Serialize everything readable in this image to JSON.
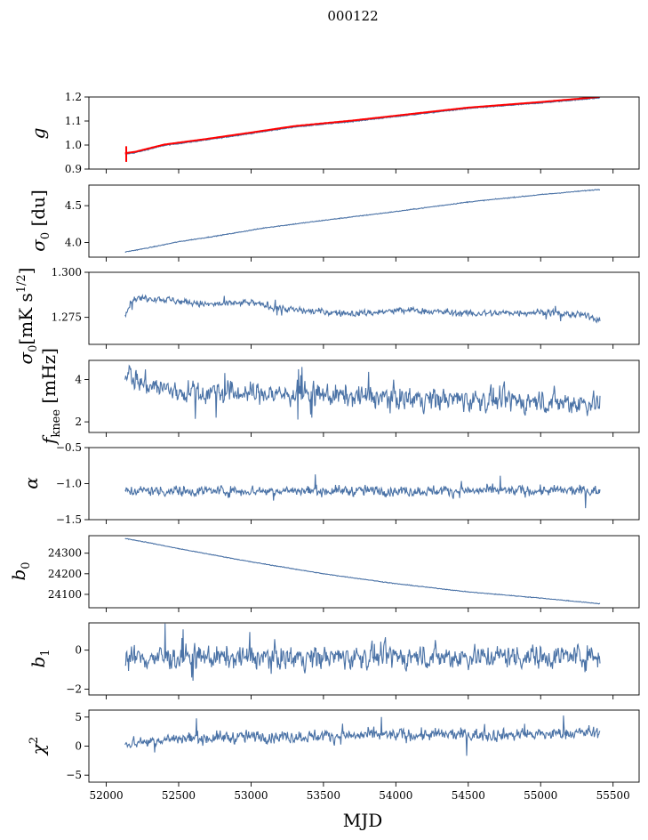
{
  "suptitle": "000122",
  "xlabel": "MJD",
  "colors": {
    "series": "#4a72a6",
    "gain_overlay": "#ff0000",
    "axes": "#000000"
  },
  "chart_data": {
    "type": "line",
    "title": "000122",
    "xlabel": "MJD",
    "xlim": [
      51880,
      55680
    ],
    "x_ticks": [
      52000,
      52500,
      53000,
      53500,
      54000,
      54500,
      55000,
      55500
    ],
    "x_tick_labels": [
      "52000",
      "52500",
      "53000",
      "53500",
      "54000",
      "54500",
      "55000",
      "55500"
    ],
    "x_range_data": [
      52130,
      55410
    ],
    "panels": [
      {
        "id": "g",
        "ylabel_text": "g",
        "ylim": [
          0.9,
          1.2
        ],
        "yticks": [
          0.9,
          1.0,
          1.1,
          1.2
        ],
        "ytick_labels": [
          "0.9",
          "1.0",
          "1.1",
          "1.2"
        ],
        "overlay": "red",
        "series": {
          "kind": "trend",
          "points": [
            [
              52130,
              0.962
            ],
            [
              52200,
              0.968
            ],
            [
              52400,
              0.998
            ],
            [
              52700,
              1.022
            ],
            [
              53000,
              1.048
            ],
            [
              53300,
              1.075
            ],
            [
              53700,
              1.098
            ],
            [
              54100,
              1.125
            ],
            [
              54500,
              1.152
            ],
            [
              55000,
              1.175
            ],
            [
              55400,
              1.196
            ]
          ],
          "noise": 0.0015
        }
      },
      {
        "id": "sigma0_du",
        "ylabel_text": "σ0 [du]",
        "ylim": [
          3.8,
          4.78
        ],
        "yticks": [
          4.0,
          4.5
        ],
        "ytick_labels": [
          "4.0",
          "4.5"
        ],
        "series": {
          "kind": "trend",
          "points": [
            [
              52130,
              3.87
            ],
            [
              52300,
              3.93
            ],
            [
              52500,
              4.01
            ],
            [
              52800,
              4.1
            ],
            [
              53100,
              4.2
            ],
            [
              53500,
              4.3
            ],
            [
              54000,
              4.42
            ],
            [
              54500,
              4.55
            ],
            [
              55000,
              4.65
            ],
            [
              55400,
              4.72
            ]
          ],
          "noise": 0.004
        }
      },
      {
        "id": "sigma0_mk",
        "ylabel_text": "σ0[mK s^1/2]",
        "ylim": [
          1.26,
          1.3
        ],
        "yticks": [
          1.275,
          1.3
        ],
        "ytick_labels": [
          "1.275",
          "1.300"
        ],
        "series": {
          "kind": "noisy",
          "points": [
            [
              52130,
              1.277
            ],
            [
              52180,
              1.285
            ],
            [
              52300,
              1.286
            ],
            [
              52700,
              1.282
            ],
            [
              53000,
              1.283
            ],
            [
              53300,
              1.279
            ],
            [
              53700,
              1.277
            ],
            [
              54100,
              1.279
            ],
            [
              54500,
              1.277
            ],
            [
              55000,
              1.278
            ],
            [
              55300,
              1.276
            ],
            [
              55400,
              1.274
            ]
          ],
          "noise": 0.0016
        }
      },
      {
        "id": "fknee",
        "ylabel_text": "fknee [mHz]",
        "ylim": [
          1.5,
          4.9
        ],
        "yticks": [
          2,
          4
        ],
        "ytick_labels": [
          "2",
          "4"
        ],
        "series": {
          "kind": "noisy",
          "points": [
            [
              52130,
              4.4
            ],
            [
              52250,
              3.8
            ],
            [
              52500,
              3.4
            ],
            [
              53000,
              3.35
            ],
            [
              53500,
              3.25
            ],
            [
              54000,
              3.15
            ],
            [
              54500,
              3.05
            ],
            [
              55000,
              2.95
            ],
            [
              55400,
              2.9
            ]
          ],
          "noise": 0.45
        }
      },
      {
        "id": "alpha",
        "ylabel_text": "α",
        "ylim": [
          -1.5,
          -0.5
        ],
        "yticks": [
          -1.5,
          -1.0,
          -0.5
        ],
        "ytick_labels": [
          "−1.5",
          "−1.0",
          "−0.5"
        ],
        "series": {
          "kind": "noisy",
          "points": [
            [
              52130,
              -1.1
            ],
            [
              55410,
              -1.1
            ]
          ],
          "noise": 0.06
        }
      },
      {
        "id": "b0",
        "ylabel_text": "b0",
        "ylim": [
          24035,
          24385
        ],
        "yticks": [
          24100,
          24200,
          24300
        ],
        "ytick_labels": [
          "24100",
          "24200",
          "24300"
        ],
        "series": {
          "kind": "trend",
          "points": [
            [
              52130,
              24372
            ],
            [
              52300,
              24350
            ],
            [
              52500,
              24322
            ],
            [
              53000,
              24258
            ],
            [
              53500,
              24200
            ],
            [
              54000,
              24152
            ],
            [
              54500,
              24112
            ],
            [
              55000,
              24082
            ],
            [
              55400,
              24055
            ]
          ],
          "noise": 1.2
        }
      },
      {
        "id": "b1",
        "ylabel_text": "b1",
        "ylim": [
          -2.3,
          1.4
        ],
        "yticks": [
          -2,
          0
        ],
        "ytick_labels": [
          "−2",
          "0"
        ],
        "series": {
          "kind": "noisy",
          "points": [
            [
              52130,
              -0.4
            ],
            [
              55410,
              -0.3
            ]
          ],
          "noise": 0.5
        }
      },
      {
        "id": "chi2",
        "ylabel_text": "χ2",
        "ylim": [
          -6.2,
          6.2
        ],
        "yticks": [
          -5,
          0,
          5
        ],
        "ytick_labels": [
          "−5",
          "0",
          "5"
        ],
        "series": {
          "kind": "noisy",
          "points": [
            [
              52130,
              0.5
            ],
            [
              52500,
              1.3
            ],
            [
              53000,
              1.6
            ],
            [
              54000,
              1.9
            ],
            [
              55000,
              2.0
            ],
            [
              55400,
              2.4
            ]
          ],
          "noise": 0.9
        }
      }
    ]
  }
}
